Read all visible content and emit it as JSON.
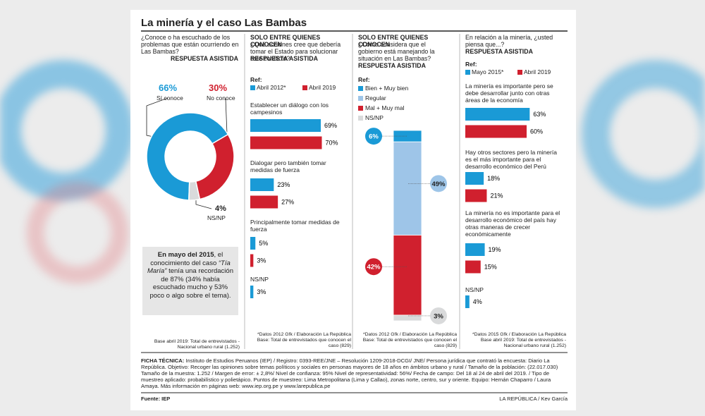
{
  "title": "La minería y el caso Las Bambas",
  "chart_data": [
    {
      "type": "donut",
      "title": "¿Conoce o ha escuchado de los problemas que están ocurriendo en Las Bambas?",
      "subtitle": "RESPUESTA ASISTIDA",
      "categories": [
        "Sí conoce",
        "No conoce",
        "NS/NP"
      ],
      "values": [
        66,
        30,
        4
      ],
      "value_labels": [
        "66%",
        "30%",
        "4%"
      ],
      "colors": [
        "#1a9ad6",
        "#d0202e",
        "#d9dadb"
      ],
      "footnote": "Base abril 2019: Total de entrevistados - Nacional urbano rural (1.252)"
    },
    {
      "type": "hbar",
      "header": "SOLO ENTRE QUIENES CONOCEN",
      "title": "¿Qué acciones cree que debería tomar el Estado para solucionar este conflicto?",
      "subtitle": "RESPUESTA ASISTIDA",
      "legend_title": "Ref:",
      "categories": [
        "Establecer un diálogo con los campesinos",
        "Dialogar pero también tomar medidas de fuerza",
        "Principalmente tomar medidas de fuerza",
        "NS/NP"
      ],
      "series": [
        {
          "name": "Abril 2012*",
          "color": "#1a9ad6",
          "values": [
            69,
            23,
            5,
            3
          ],
          "value_labels": [
            "69%",
            "23%",
            "5%",
            "3%"
          ]
        },
        {
          "name": "Abril 2019",
          "color": "#d0202e",
          "values": [
            70,
            27,
            3,
            null
          ],
          "value_labels": [
            "70%",
            "27%",
            "3%",
            null
          ]
        }
      ],
      "xlim": [
        0,
        100
      ],
      "footnote": "*Datos 2012 Gfk / Elaboración La República Base: Total de entrevistados que conocen el caso (829)"
    },
    {
      "type": "stacked_bar",
      "header": "SOLO ENTRE QUIENES CONOCEN",
      "title": "¿Cómo considera que el gobierno está manejando la situación en Las Bambas?",
      "subtitle": "RESPUESTA ASISTIDA",
      "legend_title": "Ref:",
      "series": [
        {
          "name": "Bien + Muy bien",
          "color": "#1a9ad6",
          "values": [
            6
          ],
          "value_labels": [
            "6%"
          ]
        },
        {
          "name": "Regular",
          "color": "#9ec5e8",
          "values": [
            49
          ],
          "value_labels": [
            "49%"
          ]
        },
        {
          "name": "Mal + Muy mal",
          "color": "#d0202e",
          "values": [
            42
          ],
          "value_labels": [
            "42%"
          ]
        },
        {
          "name": "NS/NP",
          "color": "#d9dadb",
          "values": [
            3
          ],
          "value_labels": [
            "3%"
          ]
        }
      ],
      "ylim": [
        0,
        100
      ],
      "footnote": "*Datos 2012 Gfk / Elaboración La República Base: Total de entrevistados que conocen el caso (829)"
    },
    {
      "type": "hbar",
      "title": "En relación a la minería, ¿usted piensa que...?",
      "subtitle": "RESPUESTA ASISTIDA",
      "legend_title": "Ref:",
      "categories": [
        "La minería es importante pero se debe desarrollar junto con otras áreas de la economía",
        "Hay otros sectores pero la minería es el más importante para el desarrollo económico del Perú",
        "La minería no es importante para el desarrollo económico del país hay otras maneras de crecer económicamente",
        "NS/NP"
      ],
      "series": [
        {
          "name": "Mayo 2015*",
          "color": "#1a9ad6",
          "values": [
            63,
            18,
            19,
            4
          ],
          "value_labels": [
            "63%",
            "18%",
            "19%",
            "4%"
          ]
        },
        {
          "name": "Abril 2019",
          "color": "#d0202e",
          "values": [
            60,
            21,
            15,
            null
          ],
          "value_labels": [
            "60%",
            "21%",
            "15%",
            null
          ]
        }
      ],
      "xlim": [
        0,
        100
      ],
      "footnote": "*Datos 2015 Gfk / Elaboración La República Base abril 2019: Total de entrevistados - Nacional urbano rural (1.252)"
    }
  ],
  "note": [
    "En mayo del 2015",
    ", el conocimiento del caso ",
    "“Tía María”",
    " tenía una recordación de 87% (34% había escuchado mucho y 53% poco o algo sobre el tema)."
  ],
  "ficha": {
    "label": "FICHA TÉCNICA:",
    "text": "Instituto de Estudios Peruanos (IEP) / Registro: 0393-REE/JNE – Resolución 1209-2018-DCGI/ JNE/ Persona jurídica que contrató la encuesta: Diario La República. Objetivo: Recoger las opiniones sobre temas políticos y sociales en personas mayores de 18 años en ámbitos urbano y rural / Tamaño de la población: (22.017.030) Tamaño de la muestra: 1.252 / Margen de error: ± 2,8%/ Nivel de confianza: 95% Nivel de representatividad: 56%/ Fecha de campo: Del 18 al 24 de abril del 2019. / Tipo de muestreo aplicado: probabilístico y polietápico. Puntos de muestreo: Lima Metropolitana (Lima y Callao), zonas norte, centro, sur y oriente. Equipo: Hernán Chaparro / Laura Amaya. Más información en páginas web: www.iep.org.pe y www.larepublica.pe"
  },
  "source": "Fuente: IEP",
  "credit": "LA REPÚBLICA / Kev García"
}
